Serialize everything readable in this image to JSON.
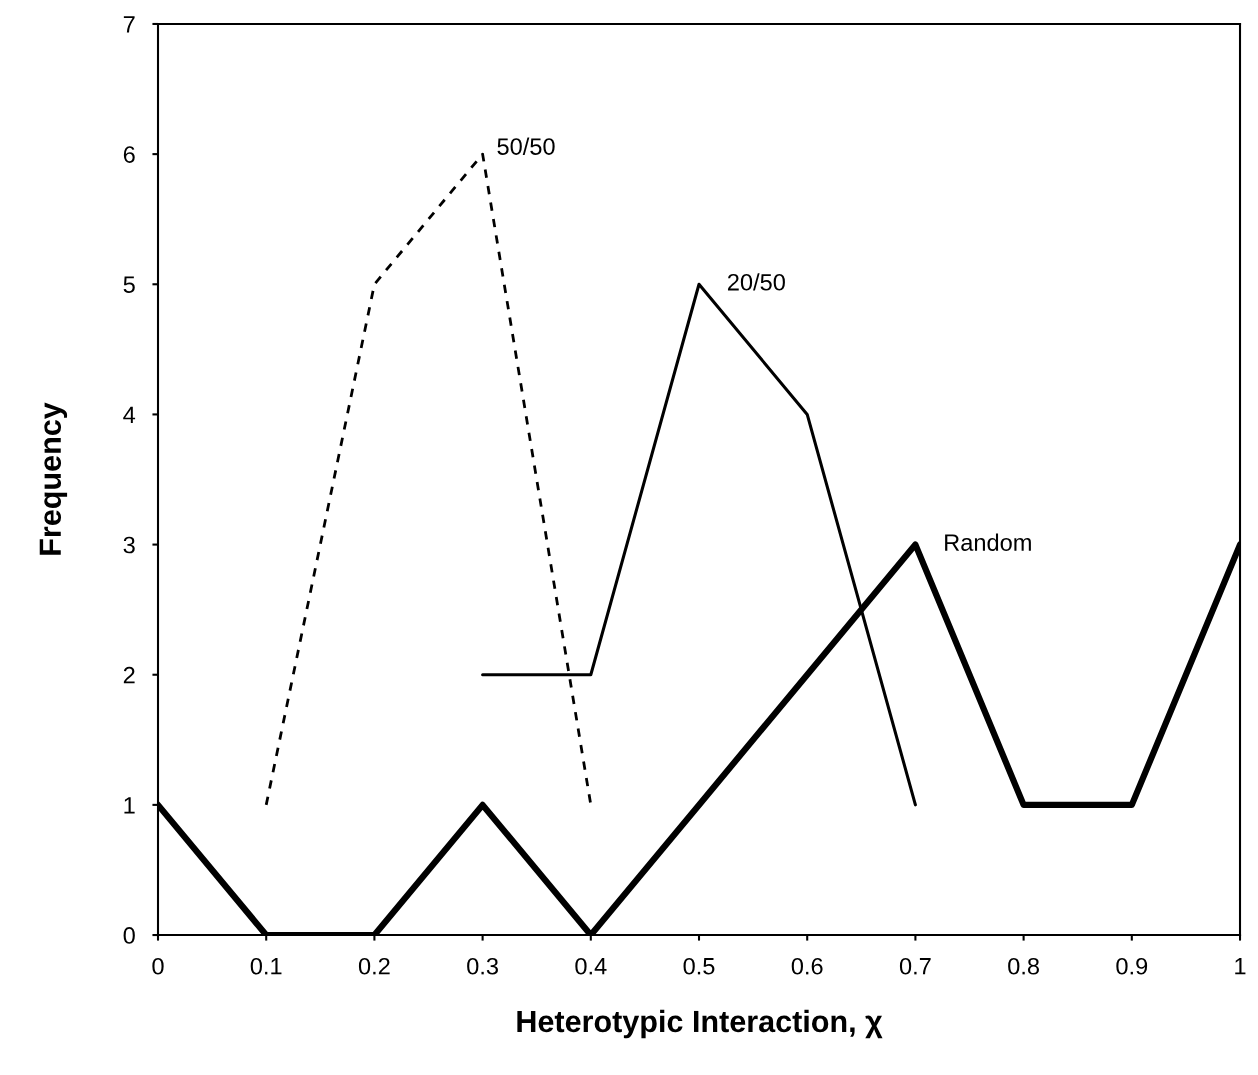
{
  "chart_data": {
    "type": "line",
    "xlabel": "Heterotypic Interaction, χ",
    "ylabel": "Frequency",
    "xlim": [
      0,
      1
    ],
    "xticks": [
      0,
      0.1,
      0.2,
      0.3,
      0.4,
      0.5,
      0.6,
      0.7,
      0.8,
      0.9,
      1
    ],
    "ylim": [
      0,
      7
    ],
    "yticks": [
      0,
      1,
      2,
      3,
      4,
      5,
      6,
      7
    ],
    "grid": false,
    "legend": false,
    "marker": "none",
    "series": [
      {
        "name": "50/50",
        "color": "#000000",
        "line_style": "dashed",
        "x": [
          0.1,
          0.2,
          0.3,
          0.4
        ],
        "values": [
          1,
          5,
          6,
          1
        ]
      },
      {
        "name": "20/50",
        "color": "#000000",
        "line_style": "solid",
        "x": [
          0.3,
          0.4,
          0.5,
          0.6,
          0.7
        ],
        "values": [
          2,
          2,
          5,
          4,
          1
        ]
      },
      {
        "name": "Random",
        "color": "#000000",
        "line_style": "solid",
        "x": [
          0,
          0.1,
          0.2,
          0.3,
          0.4,
          0.5,
          0.6,
          0.7,
          0.8,
          0.9,
          1
        ],
        "values": [
          1,
          0,
          0,
          1,
          0,
          1,
          2,
          3,
          1,
          1,
          3
        ]
      }
    ]
  }
}
